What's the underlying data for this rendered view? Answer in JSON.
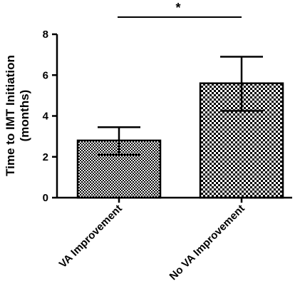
{
  "chart_data": {
    "type": "bar",
    "categories": [
      "VA Improvement",
      "No VA Improvement"
    ],
    "values": [
      2.8,
      5.6
    ],
    "error_upper": [
      3.45,
      6.9
    ],
    "error_lower": [
      2.1,
      4.25
    ],
    "ylabel_line1": "Time to IMT Initiation",
    "ylabel_line2": "(months)",
    "yticks": [
      0,
      2,
      4,
      6,
      8
    ],
    "ylim": [
      0,
      8
    ],
    "significance": "*",
    "bar_patterns": [
      "fine-checker",
      "coarse-checker"
    ],
    "grid": false
  }
}
